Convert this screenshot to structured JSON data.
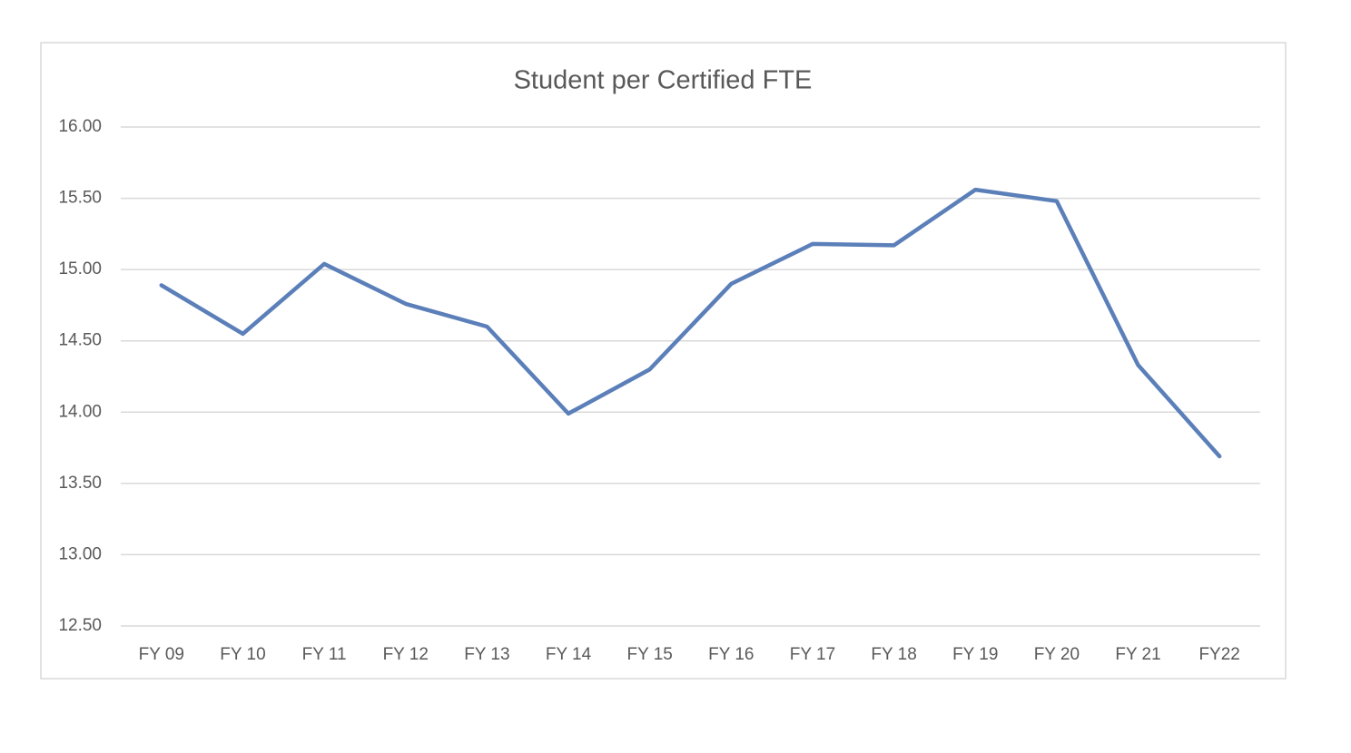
{
  "chart_data": {
    "type": "line",
    "title": "Student per Certified FTE",
    "categories": [
      "FY 09",
      "FY 10",
      "FY 11",
      "FY 12",
      "FY 13",
      "FY 14",
      "FY 15",
      "FY 16",
      "FY 17",
      "FY 18",
      "FY 19",
      "FY 20",
      "FY 21",
      "FY22"
    ],
    "values": [
      14.89,
      14.55,
      15.04,
      14.76,
      14.6,
      13.99,
      14.3,
      14.9,
      15.18,
      15.17,
      15.56,
      15.48,
      14.33,
      13.69
    ],
    "color": "#5b7fb9",
    "ylim": [
      12.5,
      16
    ],
    "yticks": [
      {
        "value": 12.5,
        "label": "12.50"
      },
      {
        "value": 13,
        "label": "13.00"
      },
      {
        "value": 13.5,
        "label": "13.50"
      },
      {
        "value": 14,
        "label": "14.00"
      },
      {
        "value": 14.5,
        "label": "14.50"
      },
      {
        "value": 15,
        "label": "15.00"
      },
      {
        "value": 15.5,
        "label": "15.50"
      },
      {
        "value": 16,
        "label": "16.00"
      }
    ],
    "grid": true
  }
}
